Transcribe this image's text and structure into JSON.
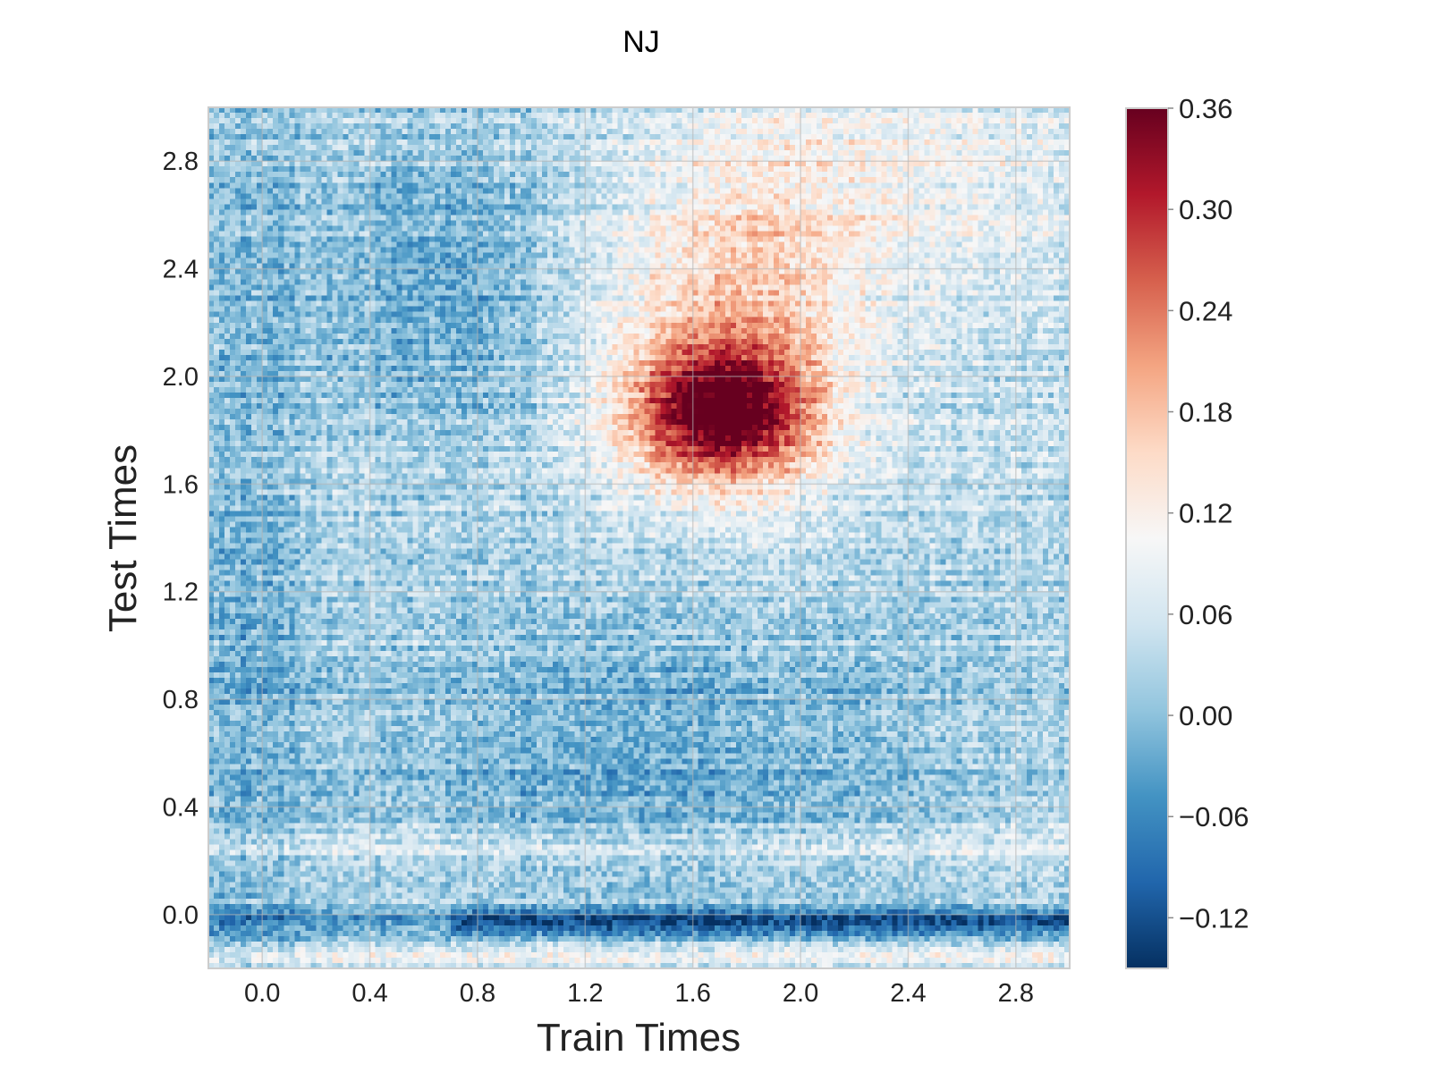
{
  "chart_data": {
    "type": "heatmap",
    "title": "NJ",
    "xlabel": "Train Times",
    "ylabel": "Test Times",
    "xlim": [
      -0.2,
      3.0
    ],
    "ylim": [
      -0.2,
      3.0
    ],
    "x_ticks": [
      "0.0",
      "0.4",
      "0.8",
      "1.2",
      "1.6",
      "2.0",
      "2.4",
      "2.8"
    ],
    "x_tick_values": [
      0.0,
      0.4,
      0.8,
      1.2,
      1.6,
      2.0,
      2.4,
      2.8
    ],
    "y_ticks": [
      "0.0",
      "0.4",
      "0.8",
      "1.2",
      "1.6",
      "2.0",
      "2.4",
      "2.8"
    ],
    "y_tick_values": [
      0.0,
      0.4,
      0.8,
      1.2,
      1.6,
      2.0,
      2.4,
      2.8
    ],
    "grid": true,
    "colormap": "RdBu_r",
    "color_range": [
      -0.15,
      0.36
    ],
    "colorbar_ticks": [
      "0.36",
      "0.30",
      "0.24",
      "0.18",
      "0.12",
      "0.06",
      "0.00",
      "−0.06",
      "−0.12"
    ],
    "colorbar_tick_values": [
      0.36,
      0.3,
      0.24,
      0.18,
      0.12,
      0.06,
      0.0,
      -0.06,
      -0.12
    ],
    "colorbar_position": "right",
    "chance_level": 0.1,
    "peak": {
      "train_time": 1.7,
      "test_time": 1.87,
      "value": 0.35
    },
    "grid_resolution": 160
  }
}
